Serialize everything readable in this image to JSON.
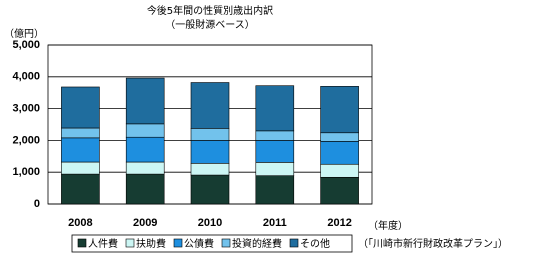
{
  "chart_data": {
    "type": "stacked_bar",
    "title": "今後5年間の性質別歳出内訳",
    "subtitle": "（一般財源ベース）",
    "y_label": "（億円）",
    "x_unit": "（年度）",
    "source": "（「川崎市新行財政改革プラン」）",
    "categories": [
      "2008",
      "2009",
      "2010",
      "2011",
      "2012"
    ],
    "series": [
      {
        "name": "人件費",
        "color": "#163c32",
        "values": [
          940,
          940,
          910,
          890,
          840
        ]
      },
      {
        "name": "扶助費",
        "color": "#ccf6f4",
        "values": [
          380,
          380,
          370,
          420,
          410
        ]
      },
      {
        "name": "公債費",
        "color": "#1e8fdf",
        "values": [
          760,
          780,
          720,
          690,
          720
        ]
      },
      {
        "name": "投資的経費",
        "color": "#72c2ec",
        "values": [
          310,
          420,
          380,
          300,
          270
        ]
      },
      {
        "name": "その他",
        "color": "#1f6d9e",
        "values": [
          1290,
          1440,
          1440,
          1420,
          1460
        ]
      }
    ],
    "ylim": [
      0,
      5000
    ],
    "yticks": [
      0,
      {
        "value": 1000,
        "label": "1,000"
      },
      {
        "value": 2000,
        "label": "2,000"
      },
      {
        "value": 3000,
        "label": "3,000"
      },
      {
        "value": 4000,
        "label": "4,000"
      },
      {
        "value": 5000,
        "label": "5,000"
      }
    ],
    "grid": true
  }
}
